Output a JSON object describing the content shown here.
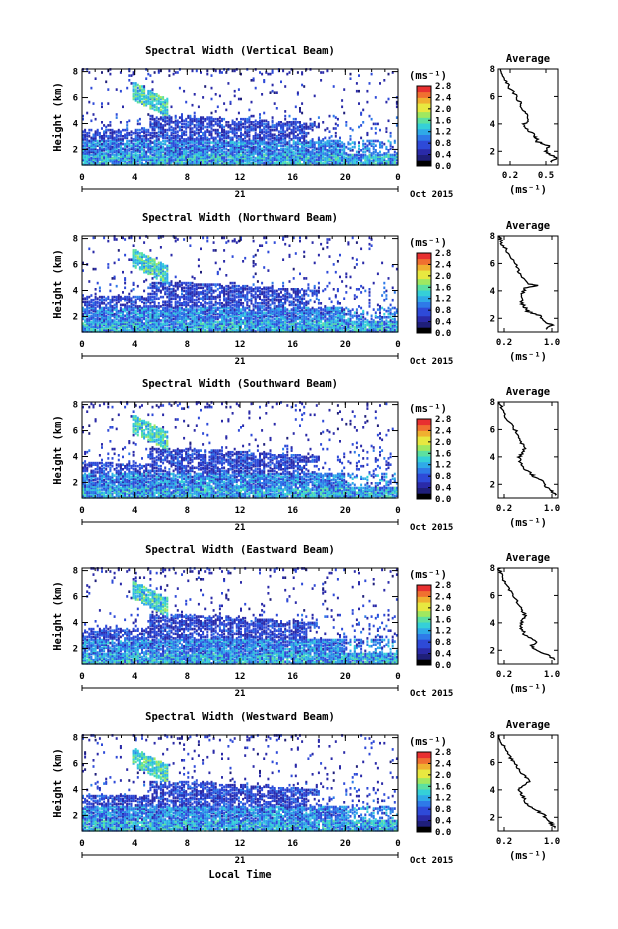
{
  "figure": {
    "xlabel": "Local Time"
  },
  "colors": {
    "cmap": [
      "#000000",
      "#1f1f7a",
      "#2a2aa8",
      "#2e4ad8",
      "#2e7ae8",
      "#2faae8",
      "#35d0d8",
      "#5ce0a0",
      "#a0e860",
      "#e8e840",
      "#f0b030",
      "#f07030",
      "#e83030"
    ]
  },
  "chart_data": [
    {
      "type": "heatmap",
      "title": "Spectral Width (Vertical Beam)",
      "ylabel": "Height (km)",
      "x_ticks": [
        "0",
        "4",
        "8",
        "12",
        "16",
        "20",
        "0"
      ],
      "y_ticks": [
        "8",
        "6",
        "4",
        "2"
      ],
      "date_day": "21",
      "date_month": "Oct 2015",
      "colorbar_unit": "(ms⁻¹)",
      "colorbar_ticks": [
        "2.8",
        "2.4",
        "2.0",
        "1.6",
        "1.2",
        "0.8",
        "0.4",
        "0.0"
      ],
      "xlim": [
        0,
        24
      ],
      "ylim": [
        0.8,
        8.2
      ],
      "clim": [
        0,
        2.8
      ],
      "profile": {
        "title": "Average",
        "xlabel": "(ms⁻¹)",
        "x_ticks": [
          "0.2",
          "0.5"
        ],
        "y_ticks": [
          "8",
          "6",
          "4",
          "2"
        ],
        "xlim": [
          0.1,
          0.6
        ],
        "ylim": [
          1,
          8
        ],
        "points": [
          [
            0.12,
            8
          ],
          [
            0.14,
            7.5
          ],
          [
            0.17,
            7
          ],
          [
            0.2,
            6.6
          ],
          [
            0.25,
            6
          ],
          [
            0.28,
            5.6
          ],
          [
            0.29,
            5.2
          ],
          [
            0.33,
            4.8
          ],
          [
            0.35,
            4.3
          ],
          [
            0.32,
            4
          ],
          [
            0.34,
            3.6
          ],
          [
            0.4,
            3.2
          ],
          [
            0.42,
            3
          ],
          [
            0.43,
            2.7
          ],
          [
            0.52,
            2.4
          ],
          [
            0.5,
            2
          ],
          [
            0.55,
            1.7
          ],
          [
            0.58,
            1.5
          ],
          [
            0.55,
            1.2
          ]
        ]
      }
    },
    {
      "type": "heatmap",
      "title": "Spectral Width (Northward Beam)",
      "ylabel": "Height (km)",
      "x_ticks": [
        "0",
        "4",
        "8",
        "12",
        "16",
        "20",
        "0"
      ],
      "y_ticks": [
        "8",
        "6",
        "4",
        "2"
      ],
      "date_day": "21",
      "date_month": "Oct 2015",
      "colorbar_unit": "(ms⁻¹)",
      "colorbar_ticks": [
        "2.8",
        "2.4",
        "2.0",
        "1.6",
        "1.2",
        "0.8",
        "0.4",
        "0.0"
      ],
      "xlim": [
        0,
        24
      ],
      "ylim": [
        0.8,
        8.2
      ],
      "clim": [
        0,
        2.8
      ],
      "profile": {
        "title": "Average",
        "xlabel": "(ms⁻¹)",
        "x_ticks": [
          "0.2",
          "1.0"
        ],
        "y_ticks": [
          "8",
          "6",
          "4",
          "2"
        ],
        "xlim": [
          0.1,
          1.1
        ],
        "ylim": [
          1,
          8
        ],
        "points": [
          [
            0.12,
            8
          ],
          [
            0.15,
            7.6
          ],
          [
            0.2,
            7.2
          ],
          [
            0.3,
            6.6
          ],
          [
            0.38,
            6
          ],
          [
            0.45,
            5.4
          ],
          [
            0.5,
            5
          ],
          [
            0.62,
            4.5
          ],
          [
            0.75,
            4.4
          ],
          [
            0.55,
            4.2
          ],
          [
            0.5,
            3.8
          ],
          [
            0.48,
            3.2
          ],
          [
            0.55,
            2.8
          ],
          [
            0.6,
            2.5
          ],
          [
            0.8,
            2.2
          ],
          [
            0.85,
            1.8
          ],
          [
            1.0,
            1.5
          ],
          [
            0.9,
            1.2
          ]
        ]
      }
    },
    {
      "type": "heatmap",
      "title": "Spectral Width (Southward Beam)",
      "ylabel": "Height (km)",
      "x_ticks": [
        "0",
        "4",
        "8",
        "12",
        "16",
        "20",
        "0"
      ],
      "y_ticks": [
        "8",
        "6",
        "4",
        "2"
      ],
      "date_day": "21",
      "date_month": "Oct 2015",
      "colorbar_unit": "(ms⁻¹)",
      "colorbar_ticks": [
        "2.8",
        "2.4",
        "2.0",
        "1.6",
        "1.2",
        "0.8",
        "0.4",
        "0.0"
      ],
      "xlim": [
        0,
        24
      ],
      "ylim": [
        0.8,
        8.2
      ],
      "clim": [
        0,
        2.8
      ],
      "profile": {
        "title": "Average",
        "xlabel": "(ms⁻¹)",
        "x_ticks": [
          "0.2",
          "1.0"
        ],
        "y_ticks": [
          "8",
          "6",
          "4",
          "2"
        ],
        "xlim": [
          0.1,
          1.1
        ],
        "ylim": [
          1,
          8
        ],
        "points": [
          [
            0.12,
            8
          ],
          [
            0.15,
            7.6
          ],
          [
            0.2,
            7
          ],
          [
            0.3,
            6.4
          ],
          [
            0.38,
            6
          ],
          [
            0.45,
            5.5
          ],
          [
            0.5,
            5
          ],
          [
            0.55,
            4.6
          ],
          [
            0.5,
            4.3
          ],
          [
            0.45,
            3.9
          ],
          [
            0.48,
            3.5
          ],
          [
            0.55,
            3.1
          ],
          [
            0.65,
            2.8
          ],
          [
            0.72,
            2.5
          ],
          [
            0.85,
            2.2
          ],
          [
            0.9,
            1.8
          ],
          [
            1.0,
            1.5
          ],
          [
            1.05,
            1.2
          ]
        ]
      }
    },
    {
      "type": "heatmap",
      "title": "Spectral Width (Eastward Beam)",
      "ylabel": "Height (km)",
      "x_ticks": [
        "0",
        "4",
        "8",
        "12",
        "16",
        "20",
        "0"
      ],
      "y_ticks": [
        "8",
        "6",
        "4",
        "2"
      ],
      "date_day": "21",
      "date_month": "Oct 2015",
      "colorbar_unit": "(ms⁻¹)",
      "colorbar_ticks": [
        "2.8",
        "2.4",
        "2.0",
        "1.6",
        "1.2",
        "0.8",
        "0.4",
        "0.0"
      ],
      "xlim": [
        0,
        24
      ],
      "ylim": [
        0.8,
        8.2
      ],
      "clim": [
        0,
        2.8
      ],
      "profile": {
        "title": "Average",
        "xlabel": "(ms⁻¹)",
        "x_ticks": [
          "0.2",
          "1.0"
        ],
        "y_ticks": [
          "8",
          "6",
          "4",
          "2"
        ],
        "xlim": [
          0.1,
          1.1
        ],
        "ylim": [
          1,
          8
        ],
        "points": [
          [
            0.12,
            8
          ],
          [
            0.14,
            7.6
          ],
          [
            0.2,
            7
          ],
          [
            0.28,
            6.5
          ],
          [
            0.35,
            6
          ],
          [
            0.42,
            5.5
          ],
          [
            0.5,
            5
          ],
          [
            0.55,
            4.6
          ],
          [
            0.52,
            4.3
          ],
          [
            0.48,
            3.9
          ],
          [
            0.5,
            3.5
          ],
          [
            0.55,
            3.1
          ],
          [
            0.62,
            2.9
          ],
          [
            0.75,
            2.6
          ],
          [
            0.65,
            2.3
          ],
          [
            0.75,
            2
          ],
          [
            0.95,
            1.6
          ],
          [
            1.05,
            1.3
          ]
        ]
      }
    },
    {
      "type": "heatmap",
      "title": "Spectral Width (Westward Beam)",
      "ylabel": "Height (km)",
      "x_ticks": [
        "0",
        "4",
        "8",
        "12",
        "16",
        "20",
        "0"
      ],
      "y_ticks": [
        "8",
        "6",
        "4",
        "2"
      ],
      "date_day": "21",
      "date_month": "Oct 2015",
      "colorbar_unit": "(ms⁻¹)",
      "colorbar_ticks": [
        "2.8",
        "2.4",
        "2.0",
        "1.6",
        "1.2",
        "0.8",
        "0.4",
        "0.0"
      ],
      "xlim": [
        0,
        24
      ],
      "ylim": [
        0.8,
        8.2
      ],
      "clim": [
        0,
        2.8
      ],
      "profile": {
        "title": "Average",
        "xlabel": "(ms⁻¹)",
        "x_ticks": [
          "0.2",
          "1.0"
        ],
        "y_ticks": [
          "8",
          "6",
          "4",
          "2"
        ],
        "xlim": [
          0.1,
          1.1
        ],
        "ylim": [
          1,
          8
        ],
        "points": [
          [
            0.12,
            8
          ],
          [
            0.15,
            7.5
          ],
          [
            0.22,
            7
          ],
          [
            0.3,
            6.4
          ],
          [
            0.38,
            6
          ],
          [
            0.45,
            5.5
          ],
          [
            0.55,
            5
          ],
          [
            0.62,
            4.6
          ],
          [
            0.52,
            4.3
          ],
          [
            0.45,
            4
          ],
          [
            0.5,
            3.6
          ],
          [
            0.55,
            3.2
          ],
          [
            0.6,
            2.9
          ],
          [
            0.72,
            2.6
          ],
          [
            0.85,
            2.2
          ],
          [
            0.95,
            1.8
          ],
          [
            1.0,
            1.5
          ],
          [
            1.05,
            1.2
          ]
        ]
      }
    }
  ]
}
